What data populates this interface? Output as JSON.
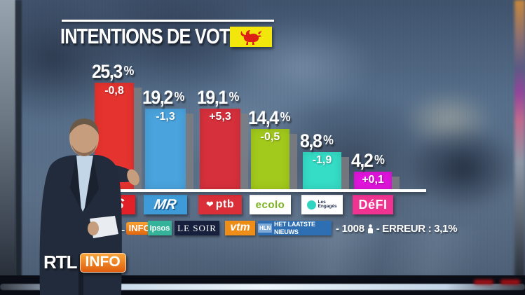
{
  "header": {
    "title": "INTENTIONS DE VOTE",
    "flag_icon": "walloon-rooster-flag",
    "flag_bg": "#f2e60c",
    "flag_rooster_color": "#dd2015"
  },
  "chart_data": {
    "type": "bar",
    "title": "INTENTIONS DE VOTE",
    "unit": "%",
    "ylim": [
      0,
      27
    ],
    "grid": false,
    "legend": false,
    "percent_sign": "%",
    "categories": [
      "PS",
      "MR",
      "PTB",
      "ECOLO",
      "LES ENGAGES",
      "DEFI"
    ],
    "values": [
      25.3,
      19.2,
      19.1,
      14.4,
      8.8,
      4.2
    ],
    "changes": [
      -0.8,
      -1.3,
      5.3,
      -0.5,
      -1.9,
      0.1
    ],
    "parties": [
      {
        "name": "PS",
        "value_label": "25,3",
        "change_label": "-0,8",
        "bar_color": "#e5332f",
        "logo_text": "PS",
        "logo_bg": "#e32028",
        "logo_fg": "#ffffff"
      },
      {
        "name": "MR",
        "value_label": "19,2",
        "change_label": "-1,3",
        "bar_color": "#4aa3dd",
        "logo_text": "MR",
        "logo_bg": "#3f9bd8",
        "logo_fg": "#ffffff"
      },
      {
        "name": "PTB",
        "value_label": "19,1",
        "change_label": "+5,3",
        "bar_color": "#d6303c",
        "logo_text": "ptb",
        "logo_bg": "#da2e38",
        "logo_fg": "#ffffff",
        "logo_heart": "❤"
      },
      {
        "name": "ECOLO",
        "value_label": "14,4",
        "change_label": "-0,5",
        "bar_color": "#a2ca1c",
        "logo_text": "ecolo",
        "logo_bg": "#ffffff",
        "logo_fg": "#7ab41e"
      },
      {
        "name": "LES ENGAGES",
        "value_label": "8,8",
        "change_label": "-1,9",
        "bar_color": "#35dcc6",
        "logo_text": "Les Engagés",
        "logo_bg": "#ffffff",
        "logo_fg": "#1b2a4a",
        "logo_dot": "#2fd5c0"
      },
      {
        "name": "DEFI",
        "value_label": "4,2",
        "change_label": "+0,1",
        "bar_color": "#e215dd",
        "logo_text": "DéFI",
        "logo_bg": "#ee3390",
        "logo_fg": "#ffffff"
      }
    ]
  },
  "source_bar": {
    "rtl": "RTL",
    "rtl_info": "INFO",
    "ipsos": "Ipsos",
    "lesoir": "LE SOIR",
    "vtm": "vtm",
    "hln_badge": "HLN",
    "hln_text": "HET LAATSTE NIEUWS",
    "sample": "- 1008",
    "respondents_icon": "person-icon",
    "error": "- ERREUR : 3,1%"
  },
  "corner_logo": {
    "rtl": "RTL",
    "info": "INFO"
  }
}
